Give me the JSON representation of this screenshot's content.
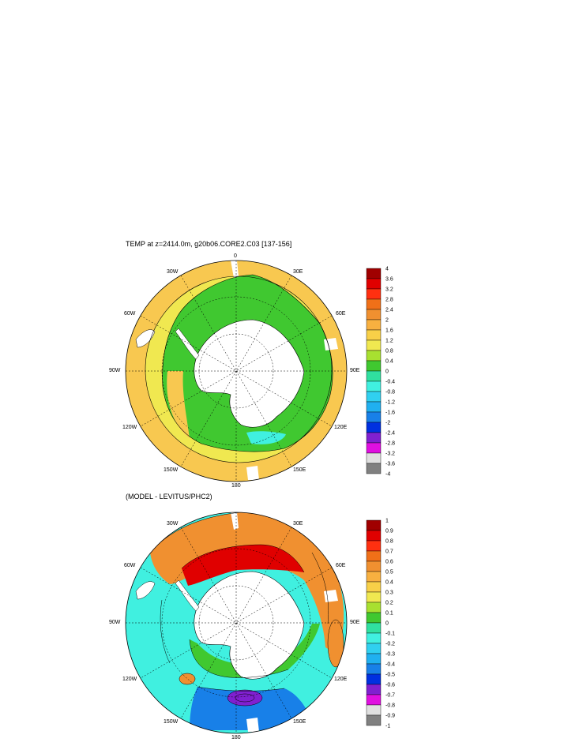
{
  "panels": [
    {
      "title": "TEMP at z=2414.0m, g20b06.CORE2.C03 [137-156]",
      "lon_labels": {
        "top": "0",
        "top_right": "30E",
        "right_upper": "60E",
        "right": "90E",
        "right_lower": "120E",
        "bottom_right": "150E",
        "bottom": "180",
        "bottom_left": "150W",
        "left_lower": "120W",
        "left": "90W",
        "left_upper": "60W",
        "top_left": "30W"
      },
      "colorbar": {
        "labels": [
          "4",
          "3.6",
          "3.2",
          "2.8",
          "2.4",
          "2",
          "1.6",
          "1.2",
          "0.8",
          "0.4",
          "0",
          "-0.4",
          "-0.8",
          "-1.2",
          "-1.6",
          "-2",
          "-2.4",
          "-2.8",
          "-3.2",
          "-3.6",
          "-4"
        ],
        "colors": [
          "#a00000",
          "#e00000",
          "#ff3010",
          "#f07018",
          "#f09030",
          "#f8b040",
          "#f8d048",
          "#f0e850",
          "#a8e030",
          "#40c830",
          "#30e0a0",
          "#40f0e0",
          "#30d0f0",
          "#20b0f0",
          "#1880e8",
          "#0030e0",
          "#8020d0",
          "#e010e0",
          "#e0e0e0",
          "#808080"
        ]
      },
      "colors": {
        "outer": "#f8c850",
        "mid": "#f0e850",
        "inner": "#40c830",
        "cold": "#40f0e0",
        "land": "#ffffff"
      }
    },
    {
      "title": "(MODEL - LEVITUS/PHC2)",
      "lon_labels": {
        "top": "",
        "top_right": "30E",
        "right_upper": "60E",
        "right": "90E",
        "right_lower": "120E",
        "bottom_right": "150E",
        "bottom": "180",
        "bottom_left": "150W",
        "left_lower": "120W",
        "left": "90W",
        "left_upper": "60W",
        "top_left": "30W"
      },
      "colorbar": {
        "labels": [
          "1",
          "0.9",
          "0.8",
          "0.7",
          "0.6",
          "0.5",
          "0.4",
          "0.3",
          "0.2",
          "0.1",
          "0",
          "-0.1",
          "-0.2",
          "-0.3",
          "-0.4",
          "-0.5",
          "-0.6",
          "-0.7",
          "-0.8",
          "-0.9",
          "-1"
        ],
        "colors": [
          "#a00000",
          "#e00000",
          "#ff3010",
          "#f07018",
          "#f09030",
          "#f8b040",
          "#f8d048",
          "#f0e850",
          "#a8e030",
          "#40c830",
          "#30e0a0",
          "#40f0e0",
          "#30d0f0",
          "#20b0f0",
          "#1880e8",
          "#0030e0",
          "#8020d0",
          "#e010e0",
          "#e0e0e0",
          "#808080"
        ]
      },
      "colors": {
        "warm": "#f09030",
        "hot": "#e00000",
        "cool": "#40f0e0",
        "green": "#40c830",
        "purple": "#8020d0",
        "land": "#ffffff"
      }
    }
  ]
}
